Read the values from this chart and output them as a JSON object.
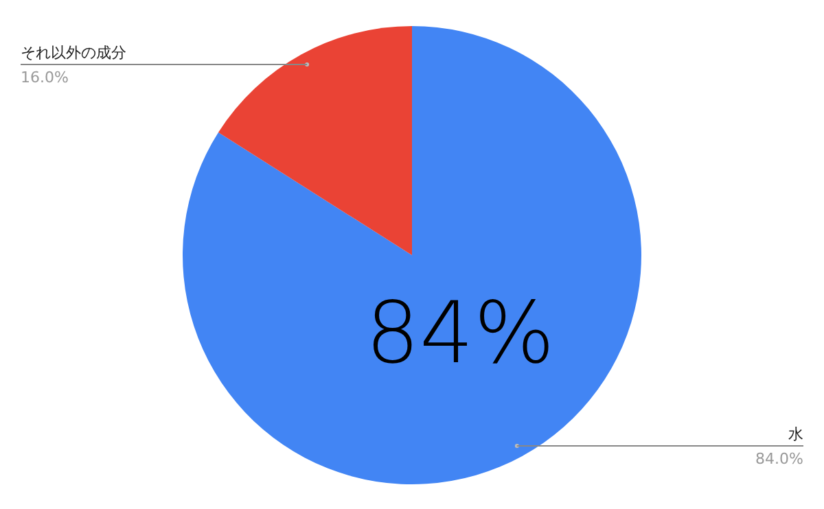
{
  "chart_data": {
    "type": "pie",
    "categories": [
      "水",
      "それ以外の成分"
    ],
    "values": [
      84.0,
      16.0
    ],
    "colors": [
      "#4285f4",
      "#ea4335"
    ],
    "value_labels": [
      "84.0%",
      "16.0%"
    ],
    "annotations": [
      "84%"
    ]
  }
}
